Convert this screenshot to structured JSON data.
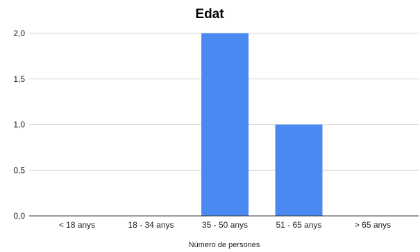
{
  "chart_data": {
    "type": "bar",
    "title": "Edat",
    "xlabel": "Número de persones",
    "ylabel": "",
    "categories": [
      "< 18 anys",
      "18 - 34 anys",
      "35 - 50 anys",
      "51 - 65 anys",
      "> 65 anys"
    ],
    "values": [
      0,
      0,
      2,
      1,
      0
    ],
    "ylim": [
      0,
      2
    ],
    "yticks": [
      "0,0",
      "0,5",
      "1,0",
      "1,5",
      "2,0"
    ],
    "grid": true,
    "bar_color": "#4a89f2"
  }
}
